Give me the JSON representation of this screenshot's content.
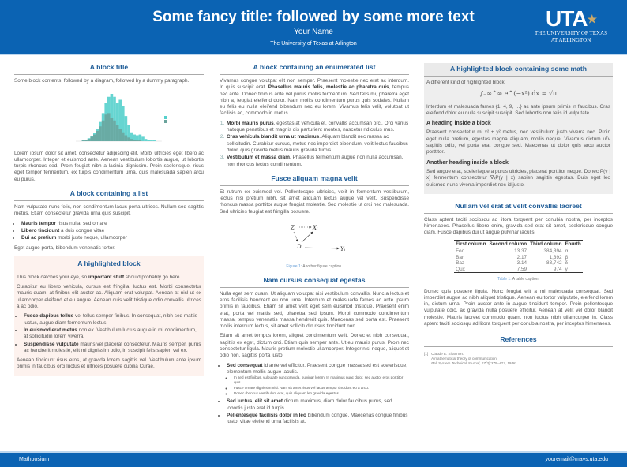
{
  "header": {
    "title": "Some fancy title: followed by some more text",
    "author": "Your Name",
    "institution": "The University of Texas at Arlington",
    "logo_text": "UTA",
    "logo_line1": "THE UNIVERSITY OF TEXAS",
    "logo_line2": "AT ARLINGTON"
  },
  "col1": {
    "block1": {
      "title": "A block title",
      "intro": "Some block contents, followed by a diagram, followed by a dummy paragraph.",
      "histogram": {
        "series": [
          {
            "color": "#55d0cc",
            "values": [
              0,
              1,
              2,
              4,
              7,
              11,
              17,
              26,
              38,
              52,
              60,
              64,
              60,
              52,
              56,
              48,
              34,
              22,
              12,
              9,
              8,
              9,
              6,
              3,
              2,
              1,
              1,
              0
            ]
          },
          {
            "color": "#6aa39c",
            "values": [
              0,
              1,
              2,
              3,
              6,
              9,
              14,
              20,
              28,
              36,
              38,
              32,
              28,
              22,
              16,
              12,
              8,
              5,
              3,
              2,
              1,
              1,
              0,
              0,
              0,
              0,
              0,
              0
            ]
          }
        ]
      },
      "para": "Lorem ipsum dolor sit amet, consectetur adipiscing elit. Morbi ultricies eget libero ac ullamcorper. Integer et euismod ante. Aenean vestibulum lobortis augue, ut lobortis turpis rhoncus sed. Proin feugiat nibh a lacinia dignissim. Proin scelerisque, risus eget tempor fermentum, ex turpis condimentum urna, quis malesuada sapien arcu eu purus."
    },
    "block2": {
      "title": "A block containing a list",
      "intro": "Nam vulputate nunc felis, non condimentum lacus porta ultrices. Nullam sed sagittis metus. Etiam consectetur gravida urna quis suscipit.",
      "items": [
        {
          "bold": "Mauris tempor",
          "text": " risus nulla, sed ornare"
        },
        {
          "bold": "Libero tincidunt",
          "text": " a duis congue vitae"
        },
        {
          "bold": "Dui ac pretium",
          "text": " morbi justo neque, ullamcorper"
        }
      ],
      "outro": "Eget augue porta, bibendum venenatis tortor."
    },
    "block3": {
      "title": "A highlighted block",
      "p1a": "This block catches your eye, so ",
      "p1b": "important stuff",
      "p1c": " should probably go here.",
      "p2": "Curabitur eu libero vehicula, cursus est fringilla, luctus est. Morbi consectetur mauris quam, at finibus elit auctor ac. Aliquam erat volutpat. Aenean at nisl ut ex ullamcorper eleifend et eu augue. Aenean quis velit tristique odio convallis ultrices a ac odio.",
      "items": [
        {
          "bold": "Fusce dapibus tellus",
          "text": " vel tellus semper finibus. In consequat, nibh sed mattis luctus, augue diam fermentum lectus."
        },
        {
          "bold": "In euismod erat metus",
          "text": " non ex. Vestibulum luctus augue in mi condimentum, at sollicitudin lorem viverra."
        },
        {
          "bold": "Suspendisse vulputate",
          "text": " mauris vel placerat consectetur. Mauris semper, purus ac hendrerit molestie, elit mi dignissim odio, in suscipit felis sapien vel ex."
        }
      ],
      "p3": "Aenean tincidunt risus eros, at gravida lorem sagittis vel. Vestibulum ante ipsum primis in faucibus orci luctus et ultrices posuere cubilia Curae."
    }
  },
  "col2": {
    "block1": {
      "title": "A block containing an enumerated list",
      "p1a": "Vivamus congue volutpat elit non semper. Praesent molestie nec erat ac interdum. In quis suscipit erat. ",
      "p1b": "Phasellus mauris felis, molestie ac pharetra quis",
      "p1c": ", tempus nec ante. Donec finibus ante vel purus mollis fermentum. Sed felis mi, pharetra eget nibh a, feugiat eleifend dolor. Nam mollis condimentum purus quis sodales. Nullam eu felis eu nulla eleifend bibendum nec eu lorem. Vivamus felis velit, volutpat ut facilisis ac, commodo in metus.",
      "items": [
        {
          "bold": "Morbi mauris purus",
          "text": ", egestas at vehicula et, convallis accumsan orci. Orci varius natoque penatibus et magnis dis parturient montes, nascetur ridiculus mus."
        },
        {
          "bold": "Cras vehicula blandit urna ut maximus",
          "text": ". Aliquam blandit nec massa ac sollicitudin. Curabitur cursus, metus nec imperdiet bibendum, velit lectus faucibus dolor, quis gravida metus mauris gravida turpis."
        },
        {
          "bold": "Vestibulum et massa diam",
          "text": ". Phasellus fermentum augue non nulla accumsan, non rhoncus lectus condimentum."
        }
      ]
    },
    "block2": {
      "title": "Fusce aliquam magna velit",
      "para": "Et rutrum ex euismod vel. Pellentesque ultricies, velit in formentum vestibulum, lectus nisi pretium nibh, sit amet aliquam lectus augue vel velit. Suspendisse rhoncus massa porttitor augue feugiat molestie. Sed molestie ut orci nec malesuada. Sed ultricies feugiat est fringilla posuere.",
      "diagram": {
        "z": "Zᵢ",
        "x": "Xᵢ",
        "d": "Dᵢ",
        "y": "Yᵢ"
      },
      "caption_label": "Figure 1:",
      "caption": " Another figure caption."
    },
    "block3": {
      "title": "Nam cursus consequat egestas",
      "p1": "Nulla eget sem quam. Ut aliquam volutpat nisi vestibulum convallis. Nunc a lectus et eros facilisis hendrerit eu non urna. Interdum et malesuada fames ac ante ipsum primis in faucibus. Etiam sit amet velit eget sem euismod tristique. Praesent enim erat, porta vel mattis sed, pharetra sed ipsum. Morbi commodo condimentum massa, tempus venenatis massa hendrerit quis. Maecenas sed porta est. Praesent mollis interdum lectus, sit amet sollicitudin risus tincidunt non.",
      "p2": "Etiam sit amet tempus lorem, aliquet condimentum velit. Donec et nibh consequat, sagittis ex eget, dictum orci. Etiam quis semper ante. Ut eu mauris purus. Proin nec consectetur ligula. Mauris pretium molestie ullamcorper. Integer nisi neque, aliquet et odio non, sagittis porta justo.",
      "items": [
        {
          "bold": "Sed consequat",
          "text": " id ante vel efficitur. Praesent congue massa sed est scelerisque, elementum mollis augue iaculis.",
          "sub": [
            "In sed est finibus, vulputate nunc gravida, pulvinar lorem. In maximus nunc dolor, sed auctor eros porttitor quis.",
            "Fusce ornare dignissim nisi. Nam sit amet risus vel lacus tempor tincidunt eu a arcu.",
            "Donec rhoncus vestibulum erat, quis aliquam leo gravida egestas."
          ]
        },
        {
          "bold": "Sed luctus, elit sit amet",
          "text": " dictum maximus, diam dolor faucibus purus, sed lobortis justo erat id turpis."
        },
        {
          "bold": "Pellentesque facilisis dolor in leo",
          "text": " bibendum congue. Maecenas congue finibus justo, vitae eleifend urna facilisis at."
        }
      ]
    }
  },
  "col3": {
    "block1": {
      "title": "A highlighted block containing some math",
      "intro": "A different kind of highlighted block.",
      "equation": "∫₋∞^∞ e^(−x²) dx = √π",
      "p1": "Interdum et malesuada fames {1, 4, 9, …} ac ante ipsum primis in faucibus. Cras eleifend dolor eu nulla suscipit suscipit. Sed lobortis non felis id vulputate.",
      "h1": "A heading inside a block",
      "p2": "Praesent consectetur mi x² + y² metus, nec vestibulum justo viverra nec. Proin eget nulla pretium, egestas magna aliquam, mollis neque. Vivamus dictum uᵀv sagittis odio, vel porta erat congue sed. Maecenas ut dolor quis arcu auctor porttitor.",
      "h2": "Another heading inside a block",
      "p3": "Sed augue erat, scelerisque a purus ultricies, placerat porttitor neque. Donec P(y | x) fermentum consectetur ∇ₓP(y | x) sapien sagittis egestas. Duis eget leo euismod nunc viverra imperdiet nec id justo."
    },
    "block2": {
      "title": "Nullam vel erat at velit convallis laoreet",
      "p1": "Class aptent taciti sociosqu ad litora torquent per conubia nostra, per inceptos himenaeos. Phasellus libero enim, gravida sed erat sit amet, scelerisque congue diam. Fusce dapibus dui ut augue pulvinar iaculis.",
      "table": {
        "headers": [
          "First column",
          "Second column",
          "Third column",
          "Fourth"
        ],
        "rows": [
          [
            "Foo",
            "13.37",
            "384,394",
            "α"
          ],
          [
            "Bar",
            "2.17",
            "1,392",
            "β"
          ],
          [
            "Baz",
            "3.14",
            "83,742",
            "δ"
          ],
          [
            "Qux",
            "7.59",
            "974",
            "γ"
          ]
        ]
      },
      "caption_label": "Table 1:",
      "caption": " A table caption.",
      "p2": "Donec quis posuere ligula. Nunc feugiat elit a mi malesuada consequat. Sed imperdiet augue ac nibh aliquet tristique. Aenean eu tortor vulputate, eleifend lorem in, dictum urna. Proin auctor ante in augue tincidunt tempor. Proin pellentesque vulputate odio, ac gravida nulla posuere efficitur. Aenean at velit vel dolor blandit molestie. Mauris laoreet commodo quam, non luctus nibh ullamcorper in. Class aptent taciti sociosqu ad litora torquent per conubia nostra, per inceptos himenaeos."
    },
    "block3": {
      "title": "References",
      "ref_num": "[1]",
      "ref_author": "Claude E. Shannon.",
      "ref_title": "A mathematical theory of communication.",
      "ref_journal": "Bell System Technical Journal, 27(3):379–423, 1948."
    }
  },
  "footer": {
    "left": "Mathposium",
    "right": "youremail@mavs.uta.edu"
  },
  "colors": {
    "brand": "#0b63b3",
    "title": "#1e5c97"
  }
}
